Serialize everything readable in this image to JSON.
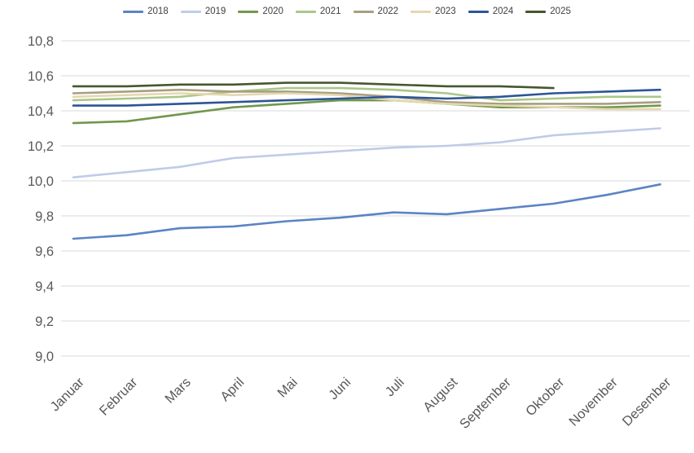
{
  "chart_data": {
    "type": "line",
    "title": "",
    "x_categories": [
      "Januar",
      "Februar",
      "Mars",
      "April",
      "Mai",
      "Juni",
      "Juli",
      "August",
      "September",
      "Oktober",
      "November",
      "Desember"
    ],
    "y_axis": {
      "min": 9.0,
      "max": 10.8,
      "step": 0.2,
      "tick_labels": [
        "9,0",
        "9,2",
        "9,4",
        "9,6",
        "9,8",
        "10,0",
        "10,2",
        "10,4",
        "10,6",
        "10,8"
      ],
      "decimal_separator": ","
    },
    "grid": true,
    "legend_position": "top",
    "series": [
      {
        "name": "2018",
        "color": "#5b84c4",
        "values": [
          9.67,
          9.69,
          9.73,
          9.74,
          9.77,
          9.79,
          9.82,
          9.81,
          9.84,
          9.87,
          9.92,
          9.98
        ]
      },
      {
        "name": "2019",
        "color": "#bfcbe9",
        "values": [
          10.02,
          10.05,
          10.08,
          10.13,
          10.15,
          10.17,
          10.19,
          10.2,
          10.22,
          10.26,
          10.28,
          10.3
        ]
      },
      {
        "name": "2020",
        "color": "#71974d",
        "values": [
          10.33,
          10.34,
          10.38,
          10.42,
          10.44,
          10.46,
          10.46,
          10.44,
          10.42,
          10.42,
          10.42,
          10.43
        ]
      },
      {
        "name": "2021",
        "color": "#a9c789",
        "values": [
          10.46,
          10.47,
          10.48,
          10.51,
          10.53,
          10.53,
          10.52,
          10.5,
          10.46,
          10.47,
          10.48,
          10.48
        ]
      },
      {
        "name": "2022",
        "color": "#a89e80",
        "values": [
          10.5,
          10.51,
          10.52,
          10.51,
          10.51,
          10.5,
          10.48,
          10.45,
          10.44,
          10.44,
          10.44,
          10.45
        ]
      },
      {
        "name": "2023",
        "color": "#e4d8b0",
        "values": [
          10.48,
          10.49,
          10.5,
          10.49,
          10.5,
          10.49,
          10.46,
          10.44,
          10.43,
          10.42,
          10.41,
          10.41
        ]
      },
      {
        "name": "2024",
        "color": "#2d5596",
        "values": [
          10.43,
          10.43,
          10.44,
          10.45,
          10.46,
          10.47,
          10.48,
          10.47,
          10.48,
          10.5,
          10.51,
          10.52
        ]
      },
      {
        "name": "2025",
        "color": "#45572e",
        "values": [
          10.54,
          10.54,
          10.55,
          10.55,
          10.56,
          10.56,
          10.55,
          10.54,
          10.54,
          10.53,
          null,
          null
        ]
      }
    ]
  },
  "colors": {
    "background": "#ffffff",
    "gridline": "#d9d9d9",
    "axis_text": "#595959",
    "legend_text": "#404040"
  }
}
